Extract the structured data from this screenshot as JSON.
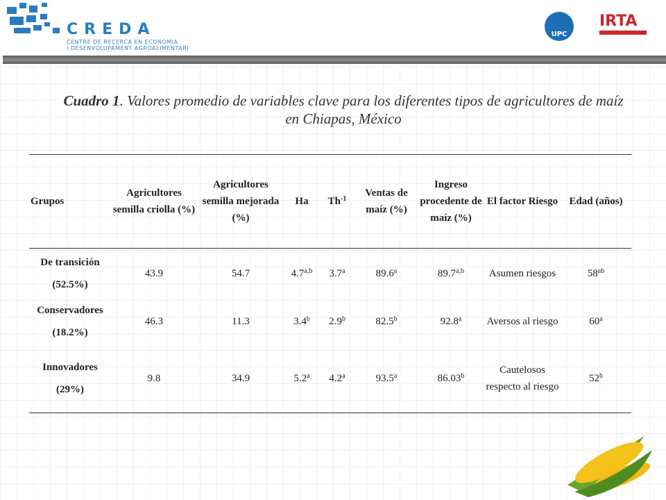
{
  "header": {
    "logo": "CREDA",
    "logo_line1": "CENTRE DE RECERCA EN ECONOMIA",
    "logo_line2": "I DESENVOLUPAMENT AGROALIMENTARI",
    "logo_upc": "UPC",
    "logo_irta": "IRTA"
  },
  "title": {
    "label": "Cuadro 1",
    "text": ". Valores promedio de variables clave para los diferentes tipos de agricultores de maíz en Chiapas, México"
  },
  "table": {
    "columns": [
      {
        "text": "Grupos"
      },
      {
        "text": "Agricultores semilla criolla (%)"
      },
      {
        "text": "Agricultores semilla mejorada (%)"
      },
      {
        "text": "Ha"
      },
      {
        "text": "Th",
        "sup": "-1"
      },
      {
        "text": "Ventas de maíz (%)"
      },
      {
        "text": "Ingreso procedente de maíz (%)"
      },
      {
        "text": "El factor Riesgo"
      },
      {
        "text": "Edad (años)"
      }
    ],
    "rows": [
      [
        {
          "text": "De transición (52.5%)"
        },
        {
          "text": "43.9"
        },
        {
          "text": "54.7"
        },
        {
          "text": "4.7",
          "sup": "a,b"
        },
        {
          "text": "3.7",
          "sup": "a"
        },
        {
          "text": "89.6",
          "sup": "a"
        },
        {
          "text": "89.7",
          "sup": "a,b"
        },
        {
          "text": "Asumen riesgos"
        },
        {
          "text": "58",
          "sup": "ab"
        }
      ],
      [
        {
          "text": "Conservadores (18.2%)"
        },
        {
          "text": "46.3"
        },
        {
          "text": "11.3"
        },
        {
          "text": "3.4",
          "sup": "b"
        },
        {
          "text": "2.9",
          "sup": "b"
        },
        {
          "text": "82.5",
          "sup": "b"
        },
        {
          "text": "92.8",
          "sup": "a"
        },
        {
          "text": "Aversos al riesgo"
        },
        {
          "text": "60",
          "sup": "a"
        }
      ],
      [
        {
          "text": "Innovadores (29%)"
        },
        {
          "text": "9.8"
        },
        {
          "text": "34.9"
        },
        {
          "text": "5.2",
          "sup": "a"
        },
        {
          "text": "4.2",
          "sup": "a"
        },
        {
          "text": "93.5",
          "sup": "a"
        },
        {
          "text": "86.03",
          "sup": "b"
        },
        {
          "text": "Cautelosos respecto al riesgo"
        },
        {
          "text": "52",
          "sup": "b"
        }
      ]
    ]
  }
}
